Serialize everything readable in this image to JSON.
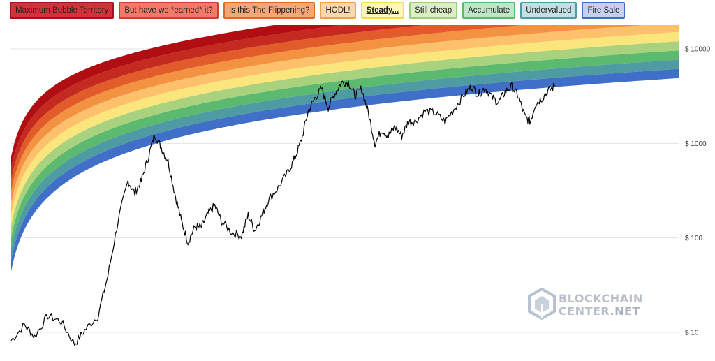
{
  "legend": [
    {
      "label": "Maximum Bubble Territory",
      "color": "#d6313a",
      "border": "#a31420",
      "active": false
    },
    {
      "label": "But have we *earned* it?",
      "color": "#f07a67",
      "border": "#c9432c",
      "active": false
    },
    {
      "label": "Is this The Flippening?",
      "color": "#f6a778",
      "border": "#e06a27",
      "active": false
    },
    {
      "label": "HODL!",
      "color": "#fcd8b1",
      "border": "#f0a045",
      "active": false
    },
    {
      "label": "Steady...",
      "color": "#fff7b8",
      "border": "#f4dc55",
      "active": true
    },
    {
      "label": "Still cheap",
      "color": "#dcefc4",
      "border": "#9fcf7a",
      "active": false
    },
    {
      "label": "Accumulate",
      "color": "#bfe6c6",
      "border": "#5cba70",
      "active": false
    },
    {
      "label": "Undervalued",
      "color": "#c4e0e4",
      "border": "#4f9ba4",
      "active": false
    },
    {
      "label": "Fire Sale",
      "color": "#c4d2ef",
      "border": "#3f6fc7",
      "active": false
    }
  ],
  "chart_data": {
    "type": "line",
    "yscale": "log",
    "ylim": [
      5,
      17000
    ],
    "yticks": [
      {
        "value": 10,
        "label": "$ 10"
      },
      {
        "value": 100,
        "label": "$ 100"
      },
      {
        "value": 1000,
        "label": "$ 1000"
      },
      {
        "value": 10000,
        "label": "$ 10000"
      }
    ],
    "bands": {
      "colors": [
        "#3f6fc7",
        "#4f9ba4",
        "#5cba70",
        "#a9d27f",
        "#fbe57d",
        "#fdc06b",
        "#f39341",
        "#e25b2b",
        "#c52a20",
        "#b00e12"
      ]
    },
    "price_series": [
      {
        "x": 0.0,
        "y": 8.2
      },
      {
        "x": 2.0,
        "y": 12
      },
      {
        "x": 3.5,
        "y": 9
      },
      {
        "x": 5.5,
        "y": 15
      },
      {
        "x": 7.5,
        "y": 13
      },
      {
        "x": 9.5,
        "y": 7.5
      },
      {
        "x": 11,
        "y": 10.5
      },
      {
        "x": 13,
        "y": 15
      },
      {
        "x": 14.5,
        "y": 40
      },
      {
        "x": 16.0,
        "y": 150
      },
      {
        "x": 17.5,
        "y": 400
      },
      {
        "x": 18.5,
        "y": 300
      },
      {
        "x": 19.5,
        "y": 400
      },
      {
        "x": 20.5,
        "y": 700
      },
      {
        "x": 21.5,
        "y": 1250
      },
      {
        "x": 22.5,
        "y": 900
      },
      {
        "x": 23.5,
        "y": 650
      },
      {
        "x": 24.5,
        "y": 300
      },
      {
        "x": 25.5,
        "y": 150
      },
      {
        "x": 26.5,
        "y": 90
      },
      {
        "x": 27.5,
        "y": 130
      },
      {
        "x": 28.5,
        "y": 130
      },
      {
        "x": 29.5,
        "y": 180
      },
      {
        "x": 30.5,
        "y": 220
      },
      {
        "x": 31.5,
        "y": 150
      },
      {
        "x": 33,
        "y": 115
      },
      {
        "x": 34.5,
        "y": 105
      },
      {
        "x": 35.5,
        "y": 175
      },
      {
        "x": 36.5,
        "y": 120
      },
      {
        "x": 37.5,
        "y": 170
      },
      {
        "x": 38.5,
        "y": 250
      },
      {
        "x": 40,
        "y": 340
      },
      {
        "x": 41.5,
        "y": 500
      },
      {
        "x": 42.5,
        "y": 700
      },
      {
        "x": 43.5,
        "y": 1100
      },
      {
        "x": 44.5,
        "y": 2200
      },
      {
        "x": 45.5,
        "y": 3000
      },
      {
        "x": 46.5,
        "y": 3800
      },
      {
        "x": 47.5,
        "y": 2400
      },
      {
        "x": 48.5,
        "y": 3400
      },
      {
        "x": 49.5,
        "y": 4400
      },
      {
        "x": 50.5,
        "y": 4500
      },
      {
        "x": 51.5,
        "y": 3200
      },
      {
        "x": 52.5,
        "y": 3800
      },
      {
        "x": 53.5,
        "y": 2100
      },
      {
        "x": 54.5,
        "y": 1000
      },
      {
        "x": 55.5,
        "y": 1400
      },
      {
        "x": 56.5,
        "y": 1200
      },
      {
        "x": 57.5,
        "y": 1500
      },
      {
        "x": 58.5,
        "y": 1200
      },
      {
        "x": 59.5,
        "y": 1700
      },
      {
        "x": 60.5,
        "y": 1700
      },
      {
        "x": 62,
        "y": 2200
      },
      {
        "x": 63.5,
        "y": 2100
      },
      {
        "x": 65,
        "y": 1700
      },
      {
        "x": 66.5,
        "y": 2400
      },
      {
        "x": 68,
        "y": 3400
      },
      {
        "x": 69,
        "y": 4000
      },
      {
        "x": 70,
        "y": 3300
      },
      {
        "x": 71,
        "y": 3900
      },
      {
        "x": 72,
        "y": 3100
      },
      {
        "x": 73,
        "y": 2700
      },
      {
        "x": 74,
        "y": 3500
      },
      {
        "x": 75,
        "y": 4000
      },
      {
        "x": 76,
        "y": 3100
      },
      {
        "x": 77,
        "y": 1900
      },
      {
        "x": 77.8,
        "y": 1700
      },
      {
        "x": 78.5,
        "y": 2600
      },
      {
        "x": 79.5,
        "y": 3000
      },
      {
        "x": 80.5,
        "y": 3600
      },
      {
        "x": 81.5,
        "y": 4100
      }
    ],
    "x_range": [
      0,
      100
    ]
  },
  "brand": {
    "line1": "BLOCKCHAIN",
    "line2_a": "CENTER",
    "line2_b": ".NET"
  }
}
